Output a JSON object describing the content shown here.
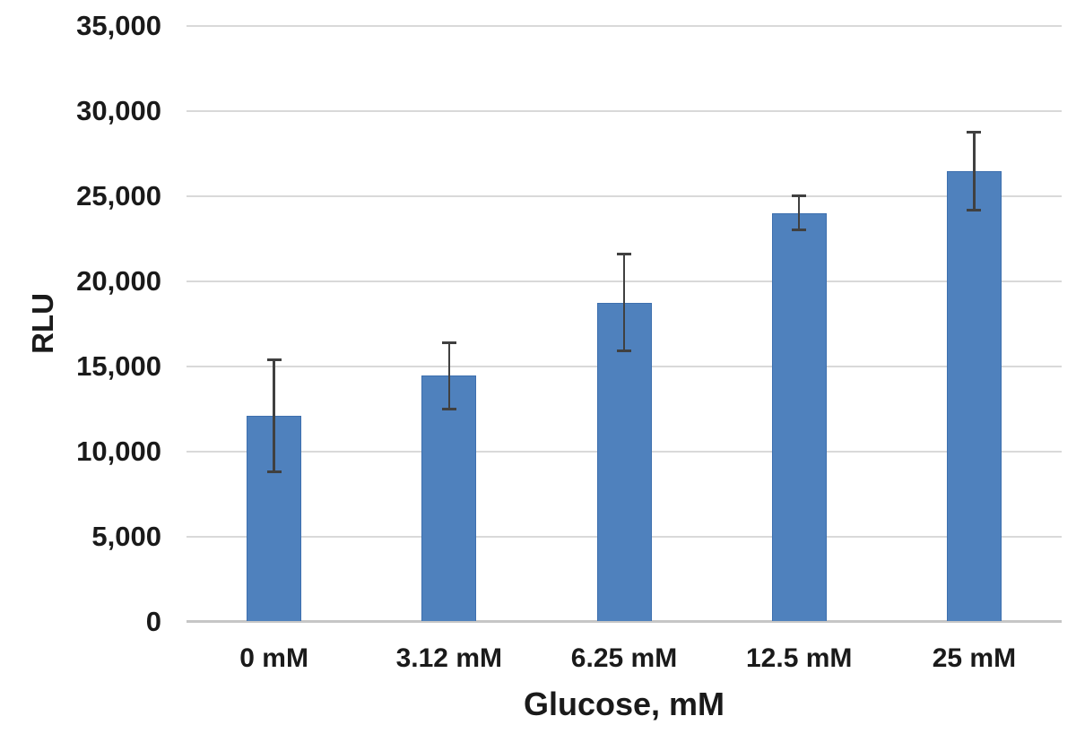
{
  "chart_data": {
    "type": "bar",
    "title": "",
    "xlabel": "Glucose, mM",
    "ylabel": "RLU",
    "categories": [
      "0 mM",
      "3.12 mM",
      "6.25 mM",
      "12.5 mM",
      "25 mM"
    ],
    "values": [
      12100,
      14450,
      18750,
      24000,
      26450
    ],
    "errors": [
      3300,
      1950,
      2850,
      1000,
      2300
    ],
    "ylim": [
      0,
      35000
    ],
    "yticks": [
      0,
      5000,
      10000,
      15000,
      20000,
      25000,
      30000,
      35000
    ],
    "ytick_labels": [
      "0",
      "5,000",
      "10,000",
      "15,000",
      "20,000",
      "25,000",
      "30,000",
      "35,000"
    ],
    "grid": true,
    "legend": "none",
    "colors": {
      "bar_fill": "#4f81bd",
      "bar_border": "#3d6fae",
      "error_bar": "#404040",
      "gridline": "#d9d9d9",
      "axis_line": "#c6c6c6",
      "text": "#1a1a1a"
    }
  }
}
